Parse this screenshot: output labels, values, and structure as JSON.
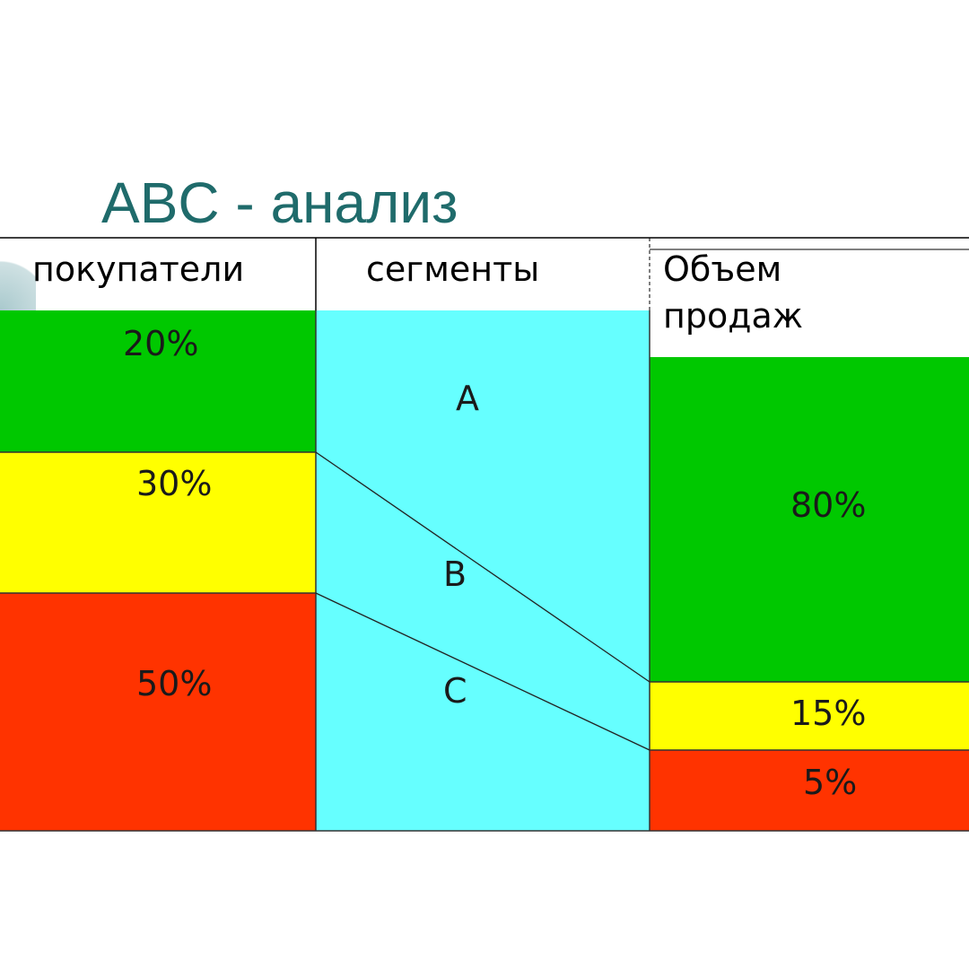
{
  "title": "ABC - анализ",
  "headers": {
    "customers": "покупатели",
    "segments": "сегменты",
    "sales_line1": "Объем",
    "sales_line2": "продаж"
  },
  "customers": [
    {
      "value": "20%",
      "color": "#00c800"
    },
    {
      "value": "30%",
      "color": "#ffff00"
    },
    {
      "value": "50%",
      "color": "#ff3300"
    }
  ],
  "segments": {
    "color": "#66ffff",
    "labels": [
      "A",
      "B",
      "C"
    ]
  },
  "sales": [
    {
      "value": "80%",
      "color": "#00c800"
    },
    {
      "value": "15%",
      "color": "#ffff00"
    },
    {
      "value": "5%",
      "color": "#ff3300"
    }
  ]
}
